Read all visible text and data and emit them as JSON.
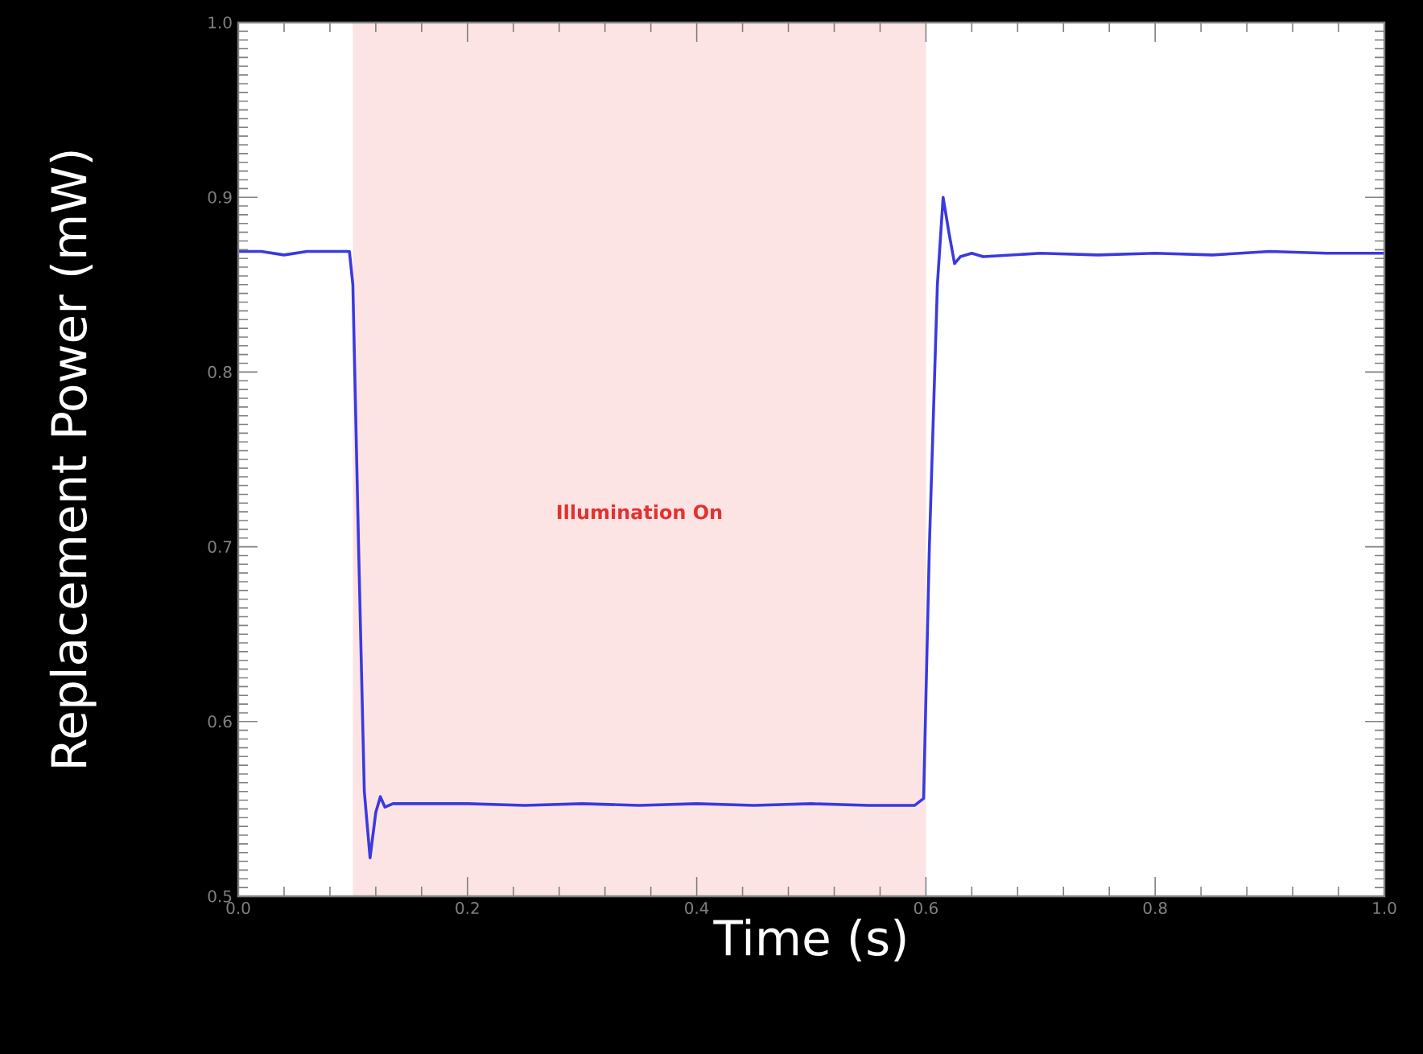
{
  "chart_data": {
    "type": "line",
    "xlabel": "Time (s)",
    "ylabel": "Replacement Power (mW)",
    "xlim": [
      0.0,
      1.0
    ],
    "ylim": [
      0.5,
      1.0
    ],
    "xticks": [
      {
        "value": 0.0,
        "label": "0.0"
      },
      0.2,
      0.4,
      0.6,
      0.8,
      {
        "value": 1.0,
        "label": "1.0"
      }
    ],
    "yticks": [
      0.5,
      0.6,
      0.7,
      0.8,
      0.9,
      {
        "value": 1.0,
        "label": "1.0"
      }
    ],
    "bands": [
      {
        "axis": "x",
        "from": 0.1,
        "to": 0.6,
        "label": "Illumination On",
        "color": "#fce4e4"
      }
    ],
    "series": [
      {
        "color": "#3a3ae0",
        "x": [
          0.0,
          0.02,
          0.04,
          0.06,
          0.08,
          0.097,
          0.1,
          0.105,
          0.11,
          0.115,
          0.12,
          0.124,
          0.128,
          0.135,
          0.15,
          0.2,
          0.25,
          0.3,
          0.35,
          0.4,
          0.45,
          0.5,
          0.55,
          0.59,
          0.598,
          0.603,
          0.61,
          0.615,
          0.62,
          0.625,
          0.63,
          0.64,
          0.65,
          0.7,
          0.75,
          0.8,
          0.85,
          0.9,
          0.95,
          1.0
        ],
        "values": [
          0.869,
          0.869,
          0.867,
          0.869,
          0.869,
          0.869,
          0.85,
          0.7,
          0.56,
          0.522,
          0.548,
          0.557,
          0.551,
          0.553,
          0.553,
          0.553,
          0.552,
          0.553,
          0.552,
          0.553,
          0.552,
          0.553,
          0.552,
          0.552,
          0.556,
          0.7,
          0.85,
          0.9,
          0.88,
          0.862,
          0.866,
          0.868,
          0.866,
          0.868,
          0.867,
          0.868,
          0.867,
          0.869,
          0.868,
          0.868
        ]
      }
    ]
  }
}
